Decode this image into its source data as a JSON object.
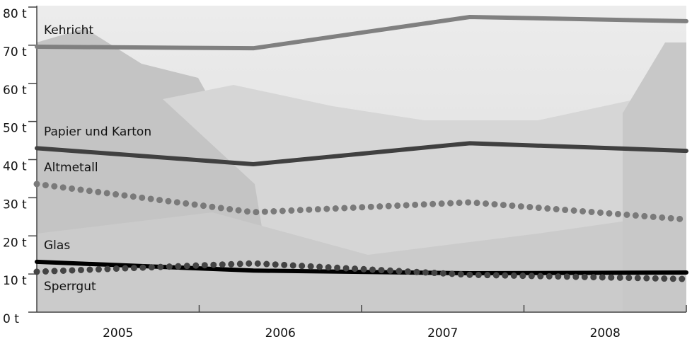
{
  "chart_data": {
    "type": "line",
    "categories": [
      "2005",
      "2006",
      "2007",
      "2008"
    ],
    "series": [
      {
        "name": "Kehricht",
        "color": "#808080",
        "line_style": "solid",
        "values": [
          69.6,
          69.2,
          77.4,
          76.3
        ]
      },
      {
        "name": "Papier und Karton",
        "color": "#404040",
        "line_style": "solid",
        "values": [
          43.0,
          38.8,
          44.3,
          42.3
        ]
      },
      {
        "name": "Altmetall",
        "color": "#7a7a7a",
        "line_style": "dotted",
        "values": [
          33.6,
          26.2,
          28.8,
          24.3
        ]
      },
      {
        "name": "Glas",
        "color": "#000000",
        "line_style": "solid",
        "values": [
          13.2,
          10.9,
          10.2,
          10.4
        ]
      },
      {
        "name": "Sperrgut",
        "color": "#444444",
        "line_style": "dotted",
        "values": [
          10.6,
          12.8,
          9.8,
          8.7
        ]
      }
    ],
    "ylim": [
      0,
      80
    ],
    "yticks": [
      {
        "value": 0,
        "label": "0 t"
      },
      {
        "value": 10,
        "label": "10 t"
      },
      {
        "value": 20,
        "label": "20 t"
      },
      {
        "value": 30,
        "label": "30 t"
      },
      {
        "value": 40,
        "label": "40 t"
      },
      {
        "value": 50,
        "label": "50 t"
      },
      {
        "value": 60,
        "label": "60 t"
      },
      {
        "value": 70,
        "label": "70 t"
      },
      {
        "value": 80,
        "label": "80 t"
      }
    ],
    "grid": false
  }
}
